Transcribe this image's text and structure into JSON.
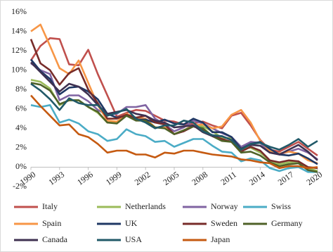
{
  "chart_data": {
    "type": "line",
    "x": [
      1990,
      1991,
      1992,
      1993,
      1994,
      1995,
      1996,
      1997,
      1998,
      1999,
      2000,
      2001,
      2002,
      2003,
      2004,
      2005,
      2006,
      2007,
      2008,
      2009,
      2010,
      2011,
      2012,
      2013,
      2014,
      2015,
      2016,
      2017,
      2018,
      2019,
      2020
    ],
    "xlim": [
      1990,
      2020
    ],
    "xticks": [
      1990,
      1993,
      1996,
      1999,
      2002,
      2005,
      2008,
      2011,
      2014,
      2017,
      2020
    ],
    "ylim": [
      -2,
      16
    ],
    "yticks": [
      {
        "value": -2,
        "label": "-2%"
      },
      {
        "value": 0,
        "label": "0%"
      },
      {
        "value": 2,
        "label": "2%"
      },
      {
        "value": 4,
        "label": "4%"
      },
      {
        "value": 6,
        "label": "6%"
      },
      {
        "value": 8,
        "label": "8%"
      },
      {
        "value": 10,
        "label": "10%"
      },
      {
        "value": 12,
        "label": "12%"
      },
      {
        "value": 14,
        "label": "14%"
      },
      {
        "value": 16,
        "label": "16%"
      }
    ],
    "series": [
      {
        "name": "Italy",
        "color": "#c0504d",
        "values": [
          11,
          12.5,
          13.3,
          13.2,
          10.6,
          10.5,
          12.1,
          9.6,
          7.4,
          5.2,
          5.6,
          5.9,
          5.8,
          5.3,
          4.8,
          4.7,
          4.4,
          4.5,
          4.7,
          4.3,
          4.0,
          5.3,
          5.6,
          4.3,
          2.8,
          1.8,
          1.6,
          2.1,
          2.6,
          1.9,
          1.2
        ]
      },
      {
        "name": "Netherlands",
        "color": "#9bbb59",
        "values": [
          9.0,
          8.8,
          8.1,
          6.4,
          6.9,
          6.9,
          6.2,
          5.6,
          4.6,
          4.6,
          5.4,
          5.0,
          4.9,
          4.1,
          4.1,
          3.4,
          3.8,
          4.3,
          4.2,
          3.7,
          3.0,
          3.0,
          1.9,
          2.0,
          1.5,
          0.7,
          0.3,
          0.5,
          0.6,
          -0.1,
          -0.4
        ]
      },
      {
        "name": "Norway",
        "color": "#8064a2",
        "values": [
          10.7,
          10.0,
          9.6,
          6.9,
          7.4,
          7.4,
          6.8,
          5.9,
          5.4,
          5.5,
          6.2,
          6.2,
          6.4,
          5.0,
          4.4,
          3.7,
          4.1,
          4.8,
          4.5,
          4.0,
          3.5,
          3.1,
          2.1,
          2.6,
          2.5,
          1.6,
          1.3,
          1.6,
          1.9,
          1.5,
          0.8
        ]
      },
      {
        "name": "Swiss",
        "color": "#4bacc6",
        "values": [
          6.4,
          6.2,
          6.4,
          4.6,
          4.9,
          4.5,
          3.7,
          3.4,
          2.7,
          2.9,
          3.9,
          3.4,
          3.2,
          2.6,
          2.7,
          2.1,
          2.5,
          2.9,
          2.9,
          2.2,
          1.6,
          1.5,
          0.6,
          0.9,
          0.7,
          -0.1,
          -0.4,
          -0.1,
          0.0,
          -0.5,
          -0.5
        ]
      },
      {
        "name": "Spain",
        "color": "#f79646",
        "values": [
          14,
          14.7,
          12.5,
          10.2,
          9.6,
          11.0,
          8.7,
          6.4,
          4.8,
          4.7,
          5.5,
          5.1,
          5.0,
          4.1,
          4.1,
          3.4,
          3.8,
          4.3,
          4.4,
          4.0,
          4.2,
          5.4,
          5.9,
          4.6,
          2.7,
          1.7,
          1.4,
          1.6,
          1.4,
          0.7,
          0.4
        ]
      },
      {
        "name": "UK",
        "color": "#1f3864",
        "values": [
          11.1,
          9.9,
          9.1,
          7.5,
          8.2,
          8.3,
          7.8,
          7.0,
          5.5,
          5.1,
          5.3,
          4.9,
          4.9,
          4.6,
          4.9,
          4.5,
          4.4,
          5.0,
          4.6,
          3.6,
          3.6,
          3.1,
          1.9,
          2.4,
          2.6,
          1.9,
          1.3,
          1.2,
          1.4,
          0.9,
          0.3
        ]
      },
      {
        "name": "Sweden",
        "color": "#772c2a",
        "values": [
          13.2,
          10.7,
          10.0,
          8.5,
          9.7,
          10.2,
          8.0,
          6.6,
          5.0,
          5.0,
          5.4,
          5.1,
          5.3,
          4.6,
          4.4,
          3.4,
          3.7,
          4.2,
          3.9,
          3.2,
          2.9,
          2.6,
          1.6,
          2.1,
          1.7,
          0.7,
          0.5,
          0.7,
          0.6,
          0.0,
          -0.1
        ]
      },
      {
        "name": "Germany",
        "color": "#4f6228",
        "values": [
          8.7,
          8.5,
          7.9,
          6.5,
          6.9,
          6.9,
          6.2,
          5.7,
          4.6,
          4.5,
          5.3,
          4.8,
          4.8,
          4.1,
          4.0,
          3.4,
          3.8,
          4.2,
          4.0,
          3.2,
          2.7,
          2.6,
          1.5,
          1.6,
          1.2,
          0.5,
          0.1,
          0.3,
          0.4,
          -0.3,
          -0.5
        ]
      },
      {
        "name": "Canada",
        "color": "#3f3151",
        "values": [
          10.8,
          9.8,
          8.8,
          7.8,
          8.6,
          8.3,
          7.5,
          6.4,
          5.5,
          5.7,
          5.9,
          5.5,
          5.3,
          4.8,
          4.6,
          4.1,
          4.2,
          4.3,
          3.6,
          3.2,
          3.2,
          2.8,
          1.9,
          2.3,
          2.2,
          1.5,
          1.3,
          1.8,
          2.3,
          1.6,
          0.7
        ]
      },
      {
        "name": "USA",
        "color": "#215968",
        "values": [
          8.6,
          7.9,
          7.0,
          5.9,
          7.1,
          6.6,
          6.4,
          6.4,
          5.3,
          5.6,
          6.0,
          5.0,
          4.6,
          4.0,
          4.3,
          4.3,
          4.8,
          4.6,
          3.7,
          3.3,
          3.2,
          2.8,
          1.8,
          2.4,
          2.5,
          2.1,
          1.8,
          2.3,
          2.9,
          2.1,
          2.7
        ]
      },
      {
        "name": "Japan",
        "color": "#c55a11",
        "values": [
          7.4,
          6.3,
          5.3,
          4.3,
          4.4,
          3.4,
          3.1,
          2.4,
          1.5,
          1.7,
          1.7,
          1.3,
          1.3,
          1.0,
          1.5,
          1.4,
          1.7,
          1.7,
          1.5,
          1.3,
          1.2,
          1.1,
          0.8,
          0.7,
          0.5,
          0.4,
          -0.1,
          0.1,
          0.1,
          -0.1,
          0.0
        ]
      }
    ]
  }
}
